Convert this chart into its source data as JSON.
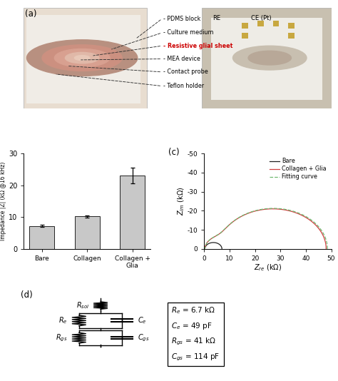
{
  "panel_b": {
    "categories": [
      "Bare",
      "Collagen",
      "Collagen +\nGlia"
    ],
    "values": [
      7.2,
      10.2,
      23.0
    ],
    "errors": [
      0.3,
      0.3,
      2.5
    ],
    "bar_color": "#c8c8c8",
    "bar_edge_color": "#222222",
    "ylabel": "Impedance |Z| (kΩ @16 kHz)",
    "ylim": [
      0,
      30
    ],
    "yticks": [
      0,
      10,
      20,
      30
    ]
  },
  "panel_c": {
    "legend_labels": [
      "Bare",
      "Collagen + Glia",
      "Fitting curve"
    ],
    "legend_colors": [
      "#222222",
      "#d04040",
      "#70b870"
    ],
    "legend_styles": [
      "-",
      "-",
      "--"
    ],
    "xlabel": "Z_re (kΩ)",
    "ylabel": "Z_im (kΩ)",
    "xlim": [
      0,
      50
    ],
    "ylim": [
      -50,
      0
    ],
    "yticks": [
      -50,
      -40,
      -30,
      -20,
      -10,
      0
    ],
    "xticks": [
      0,
      10,
      20,
      30,
      40,
      50
    ]
  },
  "panel_a": {
    "labels": [
      "PDMS block",
      "Culture medium",
      "Resistive glial sheet",
      "MEA device",
      "Contact probe",
      "Teflon holder"
    ],
    "label_color_special_idx": 2,
    "special_color": "#cc0000",
    "re_label": "RE",
    "ce_label": "CE (Pt)"
  },
  "panel_d": {
    "params_text": "$R_e$ = 6.7 k$\\Omega$\n$C_e$ = 49 pF\n$R_{gs}$ = 41 k$\\Omega$\n$C_{gs}$ = 114 pF"
  }
}
